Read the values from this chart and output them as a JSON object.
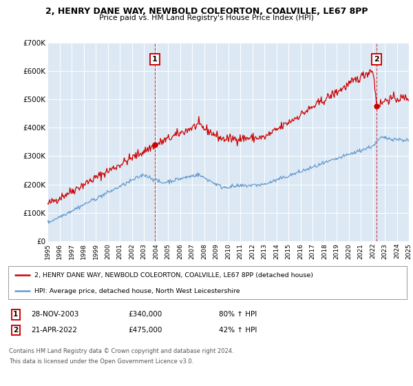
{
  "title": "2, HENRY DANE WAY, NEWBOLD COLEORTON, COALVILLE, LE67 8PP",
  "subtitle": "Price paid vs. HM Land Registry's House Price Index (HPI)",
  "legend_line1": "2, HENRY DANE WAY, NEWBOLD COLEORTON, COALVILLE, LE67 8PP (detached house)",
  "legend_line2": "HPI: Average price, detached house, North West Leicestershire",
  "footer1": "Contains HM Land Registry data © Crown copyright and database right 2024.",
  "footer2": "This data is licensed under the Open Government Licence v3.0.",
  "annotation1_label": "1",
  "annotation1_date": "28-NOV-2003",
  "annotation1_price": "£340,000",
  "annotation1_hpi": "80% ↑ HPI",
  "annotation2_label": "2",
  "annotation2_date": "21-APR-2022",
  "annotation2_price": "£475,000",
  "annotation2_hpi": "42% ↑ HPI",
  "red_color": "#cc0000",
  "blue_color": "#6699cc",
  "bg_color": "#dce9f5",
  "grid_color": "#ffffff",
  "annotation_box_color": "#cc0000",
  "ylim": [
    0,
    700000
  ],
  "yticks": [
    0,
    100000,
    200000,
    300000,
    400000,
    500000,
    600000,
    700000
  ],
  "ytick_labels": [
    "£0",
    "£100K",
    "£200K",
    "£300K",
    "£400K",
    "£500K",
    "£600K",
    "£700K"
  ],
  "xstart": 1995,
  "xend": 2025,
  "purchase1_year": 2003.91,
  "purchase1_value": 340000,
  "purchase2_year": 2022.3,
  "purchase2_value": 475000,
  "vline1_year": 2003.91,
  "vline2_year": 2022.3,
  "noise_seed": 42
}
